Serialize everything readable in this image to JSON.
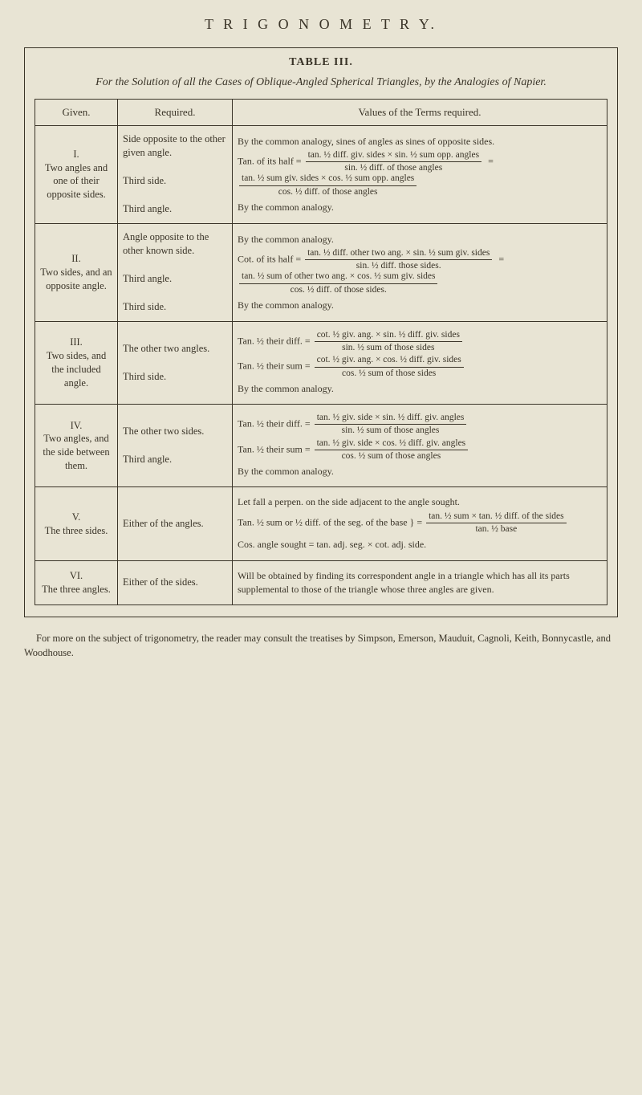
{
  "page_title": "T R I G O N O M E T R Y.",
  "table_number": "TABLE III.",
  "table_caption": "For the Solution of all the Cases of Oblique-Angled Spherical Triangles, by the Analogies of Napier.",
  "headers": {
    "given": "Given.",
    "required": "Required.",
    "values": "Values of the Terms required."
  },
  "rows": [
    {
      "given_roman": "I.",
      "given_text": "Two angles and one of their opposite sides.",
      "required": [
        "Side opposite to the other given angle.",
        "Third side.",
        "Third angle."
      ],
      "values": {
        "line1": "By the common analogy, sines of angles as sines of opposite sides.",
        "prefix2": "Tan. of its half =",
        "frac2a_num": "tan. ½ diff. giv. sides × sin. ½ sum opp. angles",
        "frac2a_den": "sin. ½ diff. of those angles",
        "frac2b_num": "tan. ½ sum giv. sides × cos. ½ sum opp. angles",
        "frac2b_den": "cos. ½ diff. of those angles",
        "line3": "By the common analogy."
      }
    },
    {
      "given_roman": "II.",
      "given_text": "Two sides, and an opposite angle.",
      "required": [
        "Angle opposite to the other known side.",
        "Third angle.",
        "Third side."
      ],
      "values": {
        "line1": "By the common analogy.",
        "prefix2": "Cot. of its half =",
        "frac2a_num": "tan. ½ diff. other two ang. × sin. ½ sum giv. sides",
        "frac2a_den": "sin. ½ diff. those sides.",
        "frac2b_num": "tan. ½ sum of other two ang. × cos. ½ sum giv. sides",
        "frac2b_den": "cos. ½ diff. of those sides.",
        "line3": "By the common analogy."
      }
    },
    {
      "given_roman": "III.",
      "given_text": "Two sides, and the included angle.",
      "required": [
        "The other two angles.",
        "Third side."
      ],
      "values": {
        "prefix1a": "Tan. ½ their diff. =",
        "frac1a_num": "cot. ½ giv. ang. × sin. ½ diff. giv. sides",
        "frac1a_den": "sin. ½ sum of those sides",
        "prefix1b": "Tan. ½ their sum =",
        "frac1b_num": "cot. ½ giv. ang. × cos. ½ diff. giv. sides",
        "frac1b_den": "cos. ½ sum of those sides",
        "line2": "By the common analogy."
      }
    },
    {
      "given_roman": "IV.",
      "given_text": "Two angles, and the side between them.",
      "required": [
        "The other two sides.",
        "Third angle."
      ],
      "values": {
        "prefix1a": "Tan. ½ their diff. =",
        "frac1a_num": "tan. ½ giv. side × sin. ½ diff. giv. angles",
        "frac1a_den": "sin. ½ sum of those angles",
        "prefix1b": "Tan. ½ their sum =",
        "frac1b_num": "tan. ½ giv. side × cos. ½ diff. giv. angles",
        "frac1b_den": "cos. ½ sum of those angles",
        "line2": "By the common analogy."
      }
    },
    {
      "given_roman": "V.",
      "given_text": "The three sides.",
      "required": [
        "Either of the angles."
      ],
      "values": {
        "line1": "Let fall a perpen. on the side adjacent to the angle sought.",
        "prefix2": "Tan. ½ sum or ½ diff. of the seg. of the base } =",
        "frac2_num": "tan. ½ sum × tan. ½ diff. of the sides",
        "frac2_den": "tan. ½ base",
        "line3": "Cos. angle sought = tan. adj. seg. × cot. adj. side."
      }
    },
    {
      "given_roman": "VI.",
      "given_text": "The three angles.",
      "required": [
        "Either of the sides."
      ],
      "values": {
        "line1": "Will be obtained by finding its correspondent angle in a triangle which has all its parts supplemental to those of the triangle whose three angles are given."
      }
    }
  ],
  "footnote": "For more on the subject of trigonometry, the reader may consult the treatises by Simpson, Emerson, Mauduit, Cagnoli, Keith, Bonnycastle, and Woodhouse."
}
